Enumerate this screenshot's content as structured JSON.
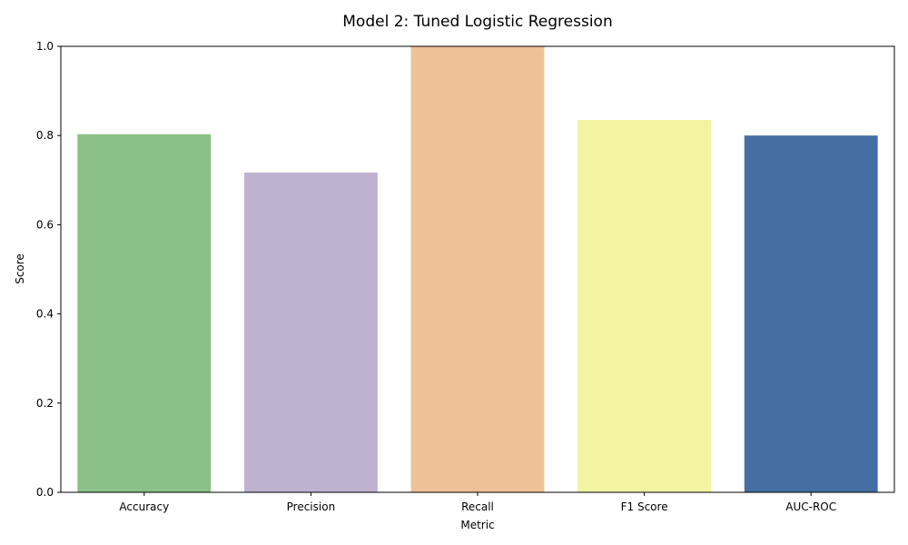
{
  "chart_data": {
    "type": "bar",
    "title": "Model 2: Tuned Logistic Regression",
    "xlabel": "Metric",
    "ylabel": "Score",
    "categories": [
      "Accuracy",
      "Precision",
      "Recall",
      "F1 Score",
      "AUC-ROC"
    ],
    "values": [
      0.803,
      0.717,
      1.0,
      0.835,
      0.8
    ],
    "colors": [
      "#8bc088",
      "#bfb2d0",
      "#efc196",
      "#f2f3a3",
      "#456fa3"
    ],
    "ylim": [
      0,
      1.0
    ],
    "yticks": [
      "0.0",
      "0.2",
      "0.4",
      "0.6",
      "0.8",
      "1.0"
    ],
    "grid": false,
    "legend": "none"
  }
}
